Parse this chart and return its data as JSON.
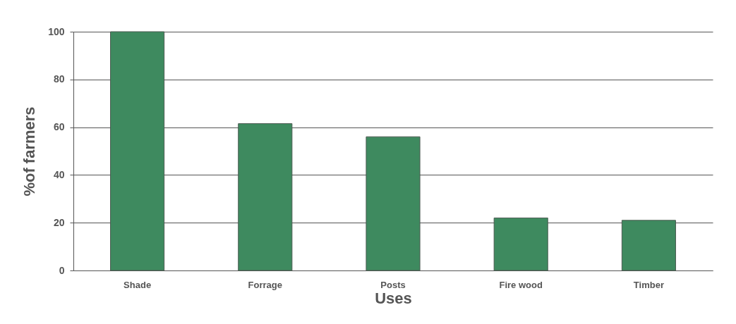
{
  "chart_data": {
    "type": "bar",
    "xlabel": "Uses",
    "ylabel": "%of farmers",
    "categories": [
      "Shade",
      "Forrage",
      "Posts",
      "Fire wood",
      "Timber"
    ],
    "values": [
      100,
      61.5,
      56,
      22,
      21
    ],
    "color": "#3e8a5f",
    "ylim": [
      0,
      100
    ],
    "yticks": [
      0,
      20,
      40,
      60,
      80,
      100
    ],
    "grid": "y"
  }
}
